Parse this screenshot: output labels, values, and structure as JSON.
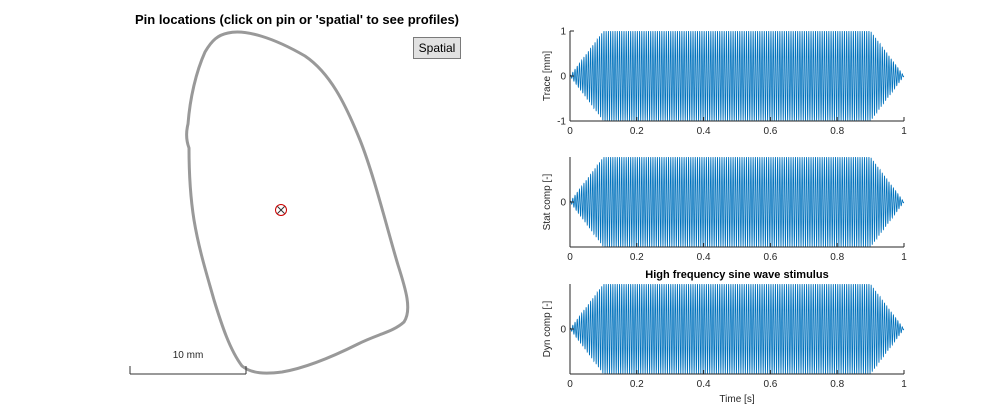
{
  "left_panel": {
    "title": "Pin locations (click on pin or 'spatial' to see profiles)",
    "spatial_label": "Spatial",
    "scale_bar_label": "10 mm",
    "outline_color": "#999999",
    "pin_color": "#cc0000"
  },
  "chart_data": [
    {
      "type": "line",
      "title": "",
      "xlabel": "",
      "ylabel": "Trace [mm]",
      "xlim": [
        0,
        1
      ],
      "ylim": [
        -1,
        1
      ],
      "xticks": [
        "0",
        "0.2",
        "0.4",
        "0.6",
        "0.8",
        "1"
      ],
      "yticks": [
        "-1",
        "0",
        "1"
      ],
      "signal": {
        "kind": "sine",
        "cycles": 150,
        "ramp_in_end": 0.1,
        "ramp_out_start": 0.9,
        "amplitude": 1
      },
      "color": "#0072bd"
    },
    {
      "type": "line",
      "title": "",
      "xlabel": "",
      "ylabel": "Stat comp [-]",
      "xlim": [
        0,
        1
      ],
      "ylim": [
        -1,
        1
      ],
      "xticks": [
        "0",
        "0.2",
        "0.4",
        "0.6",
        "0.8",
        "1"
      ],
      "yticks": [
        "0"
      ],
      "signal": {
        "kind": "sine",
        "cycles": 150,
        "ramp_in_end": 0.1,
        "ramp_out_start": 0.9,
        "amplitude": 1
      },
      "color": "#0072bd"
    },
    {
      "type": "line",
      "title": "High frequency sine wave stimulus",
      "xlabel": "Time [s]",
      "ylabel": "Dyn comp [-]",
      "xlim": [
        0,
        1
      ],
      "ylim": [
        -1,
        1
      ],
      "xticks": [
        "0",
        "0.2",
        "0.4",
        "0.6",
        "0.8",
        "1"
      ],
      "yticks": [
        "0"
      ],
      "signal": {
        "kind": "sine",
        "cycles": 150,
        "ramp_in_end": 0.1,
        "ramp_out_start": 0.9,
        "amplitude": 1
      },
      "color": "#0072bd"
    }
  ]
}
